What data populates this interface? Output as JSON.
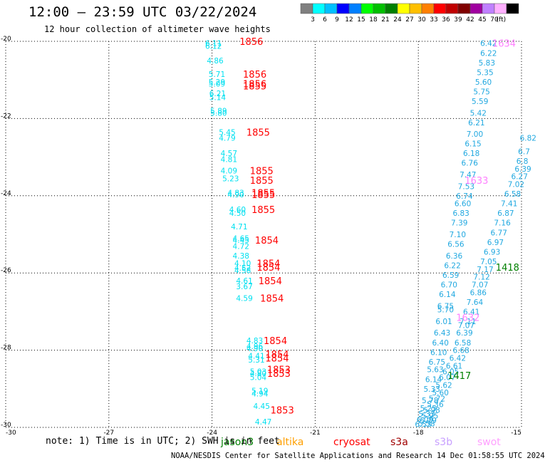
{
  "header": {
    "title": "12:00 — 23:59 UTC 03/22/2024",
    "subtitle": "12 hour collection of altimeter wave heights"
  },
  "legend": {
    "colors": [
      "#808080",
      "#00ffff",
      "#00c0ff",
      "#0000ff",
      "#0080ff",
      "#00ff00",
      "#00c000",
      "#008000",
      "#ffff00",
      "#ffc000",
      "#ff8000",
      "#ff0000",
      "#c00000",
      "#800000",
      "#a000a0",
      "#c080ff",
      "#ffb0ff",
      "#000000"
    ],
    "labels": [
      "3",
      "6",
      "9",
      "12",
      "15",
      "18",
      "21",
      "24",
      "27",
      "30",
      "33",
      "36",
      "39",
      "42",
      "45",
      "70",
      "(ft)"
    ]
  },
  "satellites": [
    {
      "name": "jason3",
      "color": "#008000"
    },
    {
      "name": "altika",
      "color": "#ffa000"
    },
    {
      "name": "cryosat",
      "color": "#ff0000"
    },
    {
      "name": "s3a",
      "color": "#a00000"
    },
    {
      "name": "s3b",
      "color": "#c8a0ff"
    },
    {
      "name": "swot",
      "color": "#ffa0ff"
    }
  ],
  "footer": {
    "note": "note: 1) Time is in UTC; 2) SWH is in feet",
    "credit": "NOAA/NESDIS Center for Satellite Applications and Research   14 Dec 01:58:55 UTC 2024"
  },
  "chart_data": {
    "type": "scatter",
    "xlim": [
      -30,
      -15
    ],
    "ylim": [
      -30,
      -20
    ],
    "x_ticks": [
      -30,
      -27,
      -24,
      -21,
      -18,
      -15
    ],
    "y_ticks": [
      -20,
      -22,
      -24,
      -26,
      -28,
      -30
    ],
    "grid": true,
    "text_color": "#00e0f0",
    "text_color_2": "#20a8e0",
    "series": [
      {
        "points": [
          {
            "x": -24.2,
            "y": -20.05,
            "label": "6.11"
          },
          {
            "x": -24.2,
            "y": -20.12,
            "label": "6.12"
          },
          {
            "x": -24.15,
            "y": -20.5,
            "label": "4.86"
          },
          {
            "x": -24.1,
            "y": -20.85,
            "label": "5.71"
          },
          {
            "x": -24.1,
            "y": -21.05,
            "label": "5.29"
          },
          {
            "x": -24.1,
            "y": -21.1,
            "label": "5.09"
          },
          {
            "x": -24.08,
            "y": -21.35,
            "label": "6.21"
          },
          {
            "x": -24.08,
            "y": -21.45,
            "label": "5.14"
          },
          {
            "x": -24.05,
            "y": -21.8,
            "label": "5.89"
          },
          {
            "x": -24.05,
            "y": -21.85,
            "label": "5.80"
          },
          {
            "x": -23.8,
            "y": -22.35,
            "label": "5.45"
          },
          {
            "x": -23.8,
            "y": -22.5,
            "label": "4.79"
          },
          {
            "x": -23.75,
            "y": -22.9,
            "label": "4.57"
          },
          {
            "x": -23.75,
            "y": -23.05,
            "label": "4.81"
          },
          {
            "x": -23.75,
            "y": -23.35,
            "label": "4.09"
          },
          {
            "x": -23.7,
            "y": -23.55,
            "label": "5.23"
          },
          {
            "x": -23.55,
            "y": -23.92,
            "label": "4.83"
          },
          {
            "x": -23.55,
            "y": -23.97,
            "label": "4.90"
          },
          {
            "x": -23.5,
            "y": -24.35,
            "label": "4.60"
          },
          {
            "x": -23.5,
            "y": -24.45,
            "label": "4.50"
          },
          {
            "x": -23.45,
            "y": -24.8,
            "label": "4.71"
          },
          {
            "x": -23.4,
            "y": -25.1,
            "label": "4.65"
          },
          {
            "x": -23.4,
            "y": -25.15,
            "label": "4.45"
          },
          {
            "x": -23.4,
            "y": -25.3,
            "label": "4.72"
          },
          {
            "x": -23.4,
            "y": -25.55,
            "label": "4.38"
          },
          {
            "x": -23.35,
            "y": -25.75,
            "label": "4.10"
          },
          {
            "x": -23.35,
            "y": -25.87,
            "label": "4.52"
          },
          {
            "x": -23.35,
            "y": -25.93,
            "label": "4.58"
          },
          {
            "x": -23.3,
            "y": -26.2,
            "label": "4.61"
          },
          {
            "x": -23.3,
            "y": -26.35,
            "label": "3.67"
          },
          {
            "x": -23.3,
            "y": -26.65,
            "label": "4.59"
          },
          {
            "x": -23.0,
            "y": -27.75,
            "label": "4.83"
          },
          {
            "x": -23.0,
            "y": -27.9,
            "label": "4.96"
          },
          {
            "x": -23.0,
            "y": -27.95,
            "label": "4.90"
          },
          {
            "x": -22.95,
            "y": -28.15,
            "label": "4.41"
          },
          {
            "x": -22.95,
            "y": -28.25,
            "label": "5.31"
          },
          {
            "x": -22.9,
            "y": -28.55,
            "label": "5.03"
          },
          {
            "x": -22.9,
            "y": -28.6,
            "label": "4.80"
          },
          {
            "x": -22.9,
            "y": -28.7,
            "label": "5.04"
          },
          {
            "x": -22.85,
            "y": -29.05,
            "label": "5.19"
          },
          {
            "x": -22.85,
            "y": -29.12,
            "label": "4.94"
          },
          {
            "x": -22.8,
            "y": -29.45,
            "label": "4.45"
          },
          {
            "x": -22.75,
            "y": -29.85,
            "label": "4.47"
          }
        ]
      },
      {
        "points": [
          {
            "x": -16.2,
            "y": -20.05,
            "label": "6.42"
          },
          {
            "x": -16.2,
            "y": -20.3,
            "label": "6.22"
          },
          {
            "x": -16.25,
            "y": -20.55,
            "label": "5.83"
          },
          {
            "x": -16.3,
            "y": -20.8,
            "label": "5.35"
          },
          {
            "x": -16.35,
            "y": -21.05,
            "label": "5.60"
          },
          {
            "x": -16.4,
            "y": -21.3,
            "label": "5.75"
          },
          {
            "x": -16.45,
            "y": -21.55,
            "label": "5.59"
          },
          {
            "x": -16.5,
            "y": -21.85,
            "label": "5.42"
          },
          {
            "x": -16.55,
            "y": -22.1,
            "label": "6.21"
          },
          {
            "x": -16.6,
            "y": -22.4,
            "label": "7.00"
          },
          {
            "x": -16.65,
            "y": -22.65,
            "label": "6.15"
          },
          {
            "x": -16.7,
            "y": -22.9,
            "label": "6.18"
          },
          {
            "x": -16.75,
            "y": -23.15,
            "label": "6.76"
          },
          {
            "x": -16.8,
            "y": -23.45,
            "label": "7.47"
          },
          {
            "x": -16.85,
            "y": -23.75,
            "label": "7.53"
          },
          {
            "x": -16.9,
            "y": -24.0,
            "label": "6.74"
          },
          {
            "x": -16.95,
            "y": -24.2,
            "label": "6.60"
          },
          {
            "x": -17.0,
            "y": -24.45,
            "label": "6.83"
          },
          {
            "x": -17.05,
            "y": -24.7,
            "label": "7.39"
          },
          {
            "x": -17.1,
            "y": -25.0,
            "label": "7.10"
          },
          {
            "x": -17.15,
            "y": -25.25,
            "label": "6.56"
          },
          {
            "x": -17.2,
            "y": -25.55,
            "label": "6.36"
          },
          {
            "x": -17.25,
            "y": -25.8,
            "label": "6.22"
          },
          {
            "x": -17.3,
            "y": -26.05,
            "label": "6.59"
          },
          {
            "x": -17.35,
            "y": -26.3,
            "label": "6.70"
          },
          {
            "x": -17.4,
            "y": -26.55,
            "label": "6.14"
          },
          {
            "x": -17.45,
            "y": -26.85,
            "label": "6.75"
          },
          {
            "x": -17.45,
            "y": -26.95,
            "label": "5.70"
          },
          {
            "x": -17.5,
            "y": -27.25,
            "label": "6.01"
          },
          {
            "x": -17.55,
            "y": -27.55,
            "label": "6.43"
          },
          {
            "x": -17.6,
            "y": -27.8,
            "label": "6.40"
          },
          {
            "x": -17.65,
            "y": -28.05,
            "label": "6.10"
          },
          {
            "x": -17.7,
            "y": -28.3,
            "label": "6.75"
          },
          {
            "x": -17.75,
            "y": -28.5,
            "label": "5.63"
          },
          {
            "x": -17.8,
            "y": -28.75,
            "label": "6.14"
          },
          {
            "x": -17.85,
            "y": -29.0,
            "label": "5.33"
          },
          {
            "x": -17.9,
            "y": -29.3,
            "label": "5.78"
          },
          {
            "x": -17.95,
            "y": -29.5,
            "label": "5.25"
          },
          {
            "x": -18.0,
            "y": -29.65,
            "label": "5.33"
          },
          {
            "x": -18.05,
            "y": -29.8,
            "label": "6.09"
          },
          {
            "x": -18.1,
            "y": -29.92,
            "label": "6.53"
          },
          {
            "x": -15.05,
            "y": -22.5,
            "label": "6.82"
          },
          {
            "x": -15.1,
            "y": -22.85,
            "label": "6.7"
          },
          {
            "x": -15.15,
            "y": -23.1,
            "label": "6.8"
          },
          {
            "x": -15.2,
            "y": -23.3,
            "label": "6.39"
          },
          {
            "x": -15.3,
            "y": -23.5,
            "label": "6.27"
          },
          {
            "x": -15.4,
            "y": -23.7,
            "label": "7.02"
          },
          {
            "x": -15.5,
            "y": -23.95,
            "label": "6.58"
          },
          {
            "x": -15.6,
            "y": -24.2,
            "label": "7.41"
          },
          {
            "x": -15.7,
            "y": -24.45,
            "label": "6.87"
          },
          {
            "x": -15.8,
            "y": -24.7,
            "label": "7.16"
          },
          {
            "x": -15.9,
            "y": -24.95,
            "label": "6.77"
          },
          {
            "x": -16.0,
            "y": -25.2,
            "label": "6.97"
          },
          {
            "x": -16.1,
            "y": -25.45,
            "label": "6.93"
          },
          {
            "x": -16.2,
            "y": -25.7,
            "label": "7.05"
          },
          {
            "x": -16.3,
            "y": -25.9,
            "label": "7.17"
          },
          {
            "x": -16.4,
            "y": -26.1,
            "label": "7.12"
          },
          {
            "x": -16.45,
            "y": -26.3,
            "label": "7.07"
          },
          {
            "x": -16.5,
            "y": -26.5,
            "label": "6.86"
          },
          {
            "x": -16.6,
            "y": -26.75,
            "label": "7.64"
          },
          {
            "x": -16.7,
            "y": -27.0,
            "label": "6.41"
          },
          {
            "x": -16.8,
            "y": -27.25,
            "label": "7.11"
          },
          {
            "x": -16.85,
            "y": -27.35,
            "label": "7.07"
          },
          {
            "x": -16.9,
            "y": -27.55,
            "label": "6.39"
          },
          {
            "x": -16.95,
            "y": -27.8,
            "label": "6.58"
          },
          {
            "x": -17.0,
            "y": -28.0,
            "label": "6.68"
          },
          {
            "x": -17.1,
            "y": -28.2,
            "label": "6.42"
          },
          {
            "x": -17.2,
            "y": -28.4,
            "label": "6.61"
          },
          {
            "x": -17.3,
            "y": -28.55,
            "label": "6.05"
          },
          {
            "x": -17.4,
            "y": -28.7,
            "label": "6.07"
          },
          {
            "x": -17.5,
            "y": -28.9,
            "label": "5.62"
          },
          {
            "x": -17.6,
            "y": -29.1,
            "label": "5.60"
          },
          {
            "x": -17.7,
            "y": -29.25,
            "label": "5.72"
          },
          {
            "x": -17.75,
            "y": -29.4,
            "label": "5.36"
          },
          {
            "x": -17.85,
            "y": -29.55,
            "label": "5.98"
          },
          {
            "x": -17.9,
            "y": -29.7,
            "label": "5.95"
          },
          {
            "x": -17.95,
            "y": -29.82,
            "label": "5.79"
          },
          {
            "x": -18.0,
            "y": -29.9,
            "label": "5.58"
          }
        ]
      }
    ],
    "satellite_times": [
      {
        "x": -23.2,
        "y": -20.0,
        "label": "1856",
        "color": "#ff0000"
      },
      {
        "x": -23.1,
        "y": -20.85,
        "label": "1856",
        "color": "#ff0000"
      },
      {
        "x": -23.1,
        "y": -21.1,
        "label": "1856",
        "color": "#ff0000"
      },
      {
        "x": -23.1,
        "y": -21.15,
        "label": "1855",
        "color": "#ff0000"
      },
      {
        "x": -23.0,
        "y": -22.35,
        "label": "1855",
        "color": "#ff0000"
      },
      {
        "x": -22.9,
        "y": -23.35,
        "label": "1855",
        "color": "#ff0000"
      },
      {
        "x": -22.9,
        "y": -23.6,
        "label": "1855",
        "color": "#ff0000"
      },
      {
        "x": -22.85,
        "y": -23.92,
        "label": "1855",
        "color": "#ff0000"
      },
      {
        "x": -22.85,
        "y": -23.97,
        "label": "1855",
        "color": "#ff0000"
      },
      {
        "x": -22.85,
        "y": -24.35,
        "label": "1855",
        "color": "#ff0000"
      },
      {
        "x": -22.75,
        "y": -25.15,
        "label": "1854",
        "color": "#ff0000"
      },
      {
        "x": -22.7,
        "y": -25.75,
        "label": "1854",
        "color": "#ff0000"
      },
      {
        "x": -22.7,
        "y": -25.85,
        "label": "1854",
        "color": "#ff0000"
      },
      {
        "x": -22.65,
        "y": -26.2,
        "label": "1854",
        "color": "#ff0000"
      },
      {
        "x": -22.6,
        "y": -26.65,
        "label": "1854",
        "color": "#ff0000"
      },
      {
        "x": -22.5,
        "y": -27.75,
        "label": "1854",
        "color": "#ff0000"
      },
      {
        "x": -22.45,
        "y": -28.1,
        "label": "1854",
        "color": "#ff0000"
      },
      {
        "x": -22.45,
        "y": -28.2,
        "label": "1854",
        "color": "#ff0000"
      },
      {
        "x": -22.4,
        "y": -28.5,
        "label": "1853",
        "color": "#ff0000"
      },
      {
        "x": -22.4,
        "y": -28.6,
        "label": "1853",
        "color": "#ff0000"
      },
      {
        "x": -22.3,
        "y": -29.55,
        "label": "1853",
        "color": "#ff0000"
      },
      {
        "x": -15.85,
        "y": -20.05,
        "label": "1634",
        "color": "#ff80ff"
      },
      {
        "x": -16.65,
        "y": -23.6,
        "label": "1633",
        "color": "#ff80ff"
      },
      {
        "x": -16.9,
        "y": -27.15,
        "label": "1632",
        "color": "#ff80ff"
      },
      {
        "x": -15.75,
        "y": -25.85,
        "label": "1418",
        "color": "#008000"
      },
      {
        "x": -17.15,
        "y": -28.65,
        "label": "1417",
        "color": "#008000"
      }
    ]
  }
}
